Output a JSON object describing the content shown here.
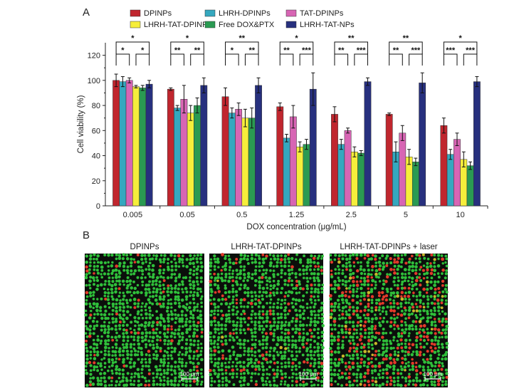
{
  "panel_a_label": "A",
  "panel_b_label": "B",
  "chart_data": {
    "type": "bar",
    "title": "",
    "xlabel": "DOX concentration (μg/mL)",
    "ylabel": "Cell viability (%)",
    "ylim": [
      0,
      130
    ],
    "yticks": [
      "0",
      "20",
      "40",
      "60",
      "80",
      "100",
      "120"
    ],
    "categories": [
      "0.005",
      "0.05",
      "0.5",
      "1.25",
      "2.5",
      "5",
      "10"
    ],
    "legend_position": "top",
    "series": [
      {
        "name": "DPINPs",
        "color": "#c0262e",
        "values": [
          100,
          93,
          87,
          79,
          73,
          73,
          64
        ],
        "errors": [
          5,
          1,
          7,
          3,
          6,
          1,
          6
        ]
      },
      {
        "name": "LHRH-DPINPs",
        "color": "#35a8bf",
        "values": [
          99,
          78,
          74,
          54,
          49,
          43,
          41
        ],
        "errors": [
          4,
          2,
          4,
          3,
          4,
          8,
          4
        ]
      },
      {
        "name": "TAT-DPINPs",
        "color": "#d765b4",
        "values": [
          100,
          85,
          77,
          71,
          60,
          58,
          53
        ],
        "errors": [
          2,
          11,
          5,
          9,
          2,
          6,
          5
        ]
      },
      {
        "name": "LHRH-TAT-DPINPs",
        "color": "#f6ee3b",
        "values": [
          95,
          74,
          70,
          47,
          43,
          39,
          37
        ],
        "errors": [
          1,
          6,
          7,
          4,
          4,
          6,
          6
        ]
      },
      {
        "name": "Free DOX&PTX",
        "color": "#2a9a52",
        "values": [
          94,
          80,
          70,
          49,
          42,
          35,
          32
        ],
        "errors": [
          2,
          6,
          8,
          4,
          2,
          3,
          3
        ]
      },
      {
        "name": "LHRH-TAT-NPs",
        "color": "#27307e",
        "values": [
          97,
          96,
          96,
          93,
          99,
          98,
          99
        ],
        "errors": [
          3,
          6,
          6,
          13,
          3,
          8,
          4
        ]
      }
    ],
    "significance": [
      {
        "category": "0.005",
        "left": {
          "from": "DPINPs",
          "to": "TAT-DPINPs",
          "label": "*"
        },
        "outer": {
          "from": "DPINPs",
          "to": "LHRH-TAT-NPs",
          "label": "*"
        },
        "right": {
          "from": "LHRH-TAT-DPINPs",
          "to": "LHRH-TAT-NPs",
          "label": "*"
        }
      },
      {
        "category": "0.05",
        "left": {
          "from": "DPINPs",
          "to": "TAT-DPINPs",
          "label": "**"
        },
        "outer": {
          "from": "DPINPs",
          "to": "LHRH-TAT-NPs",
          "label": "*"
        },
        "right": {
          "from": "LHRH-TAT-DPINPs",
          "to": "LHRH-TAT-NPs",
          "label": "**"
        }
      },
      {
        "category": "0.5",
        "left": {
          "from": "DPINPs",
          "to": "TAT-DPINPs",
          "label": "*"
        },
        "outer": {
          "from": "DPINPs",
          "to": "LHRH-TAT-NPs",
          "label": "**"
        },
        "right": {
          "from": "LHRH-TAT-DPINPs",
          "to": "LHRH-TAT-NPs",
          "label": "**"
        }
      },
      {
        "category": "1.25",
        "left": {
          "from": "DPINPs",
          "to": "TAT-DPINPs",
          "label": "**"
        },
        "outer": {
          "from": "DPINPs",
          "to": "LHRH-TAT-NPs",
          "label": "*"
        },
        "right": {
          "from": "LHRH-TAT-DPINPs",
          "to": "LHRH-TAT-NPs",
          "label": "***"
        }
      },
      {
        "category": "2.5",
        "left": {
          "from": "DPINPs",
          "to": "TAT-DPINPs",
          "label": "**"
        },
        "outer": {
          "from": "DPINPs",
          "to": "LHRH-TAT-NPs",
          "label": "**"
        },
        "right": {
          "from": "LHRH-TAT-DPINPs",
          "to": "LHRH-TAT-NPs",
          "label": "***"
        }
      },
      {
        "category": "5",
        "left": {
          "from": "DPINPs",
          "to": "TAT-DPINPs",
          "label": "**"
        },
        "outer": {
          "from": "DPINPs",
          "to": "LHRH-TAT-NPs",
          "label": "**"
        },
        "right": {
          "from": "LHRH-TAT-DPINPs",
          "to": "LHRH-TAT-NPs",
          "label": "***"
        }
      },
      {
        "category": "10",
        "left": {
          "from": "DPINPs",
          "to": "TAT-DPINPs",
          "label": "***"
        },
        "outer": {
          "from": "DPINPs",
          "to": "LHRH-TAT-NPs",
          "label": "*"
        },
        "right": {
          "from": "LHRH-TAT-DPINPs",
          "to": "LHRH-TAT-NPs",
          "label": "***"
        }
      }
    ]
  },
  "panel_b": {
    "images": [
      {
        "title": "DPINPs",
        "red_fraction": 0.05,
        "yellow_fraction": 0.0,
        "scale_bar": "100 μm"
      },
      {
        "title": "LHRH-TAT-DPINPs",
        "red_fraction": 0.1,
        "yellow_fraction": 0.01,
        "scale_bar": "100 μm"
      },
      {
        "title": "LHRH-TAT-DPINPs + laser",
        "red_fraction": 0.24,
        "yellow_fraction": 0.04,
        "scale_bar": "100 μm"
      }
    ],
    "colors": {
      "live": "#2fbf3a",
      "dead": "#e23a2a",
      "mixed": "#c8b62a",
      "background": "#0b0f0b"
    }
  }
}
